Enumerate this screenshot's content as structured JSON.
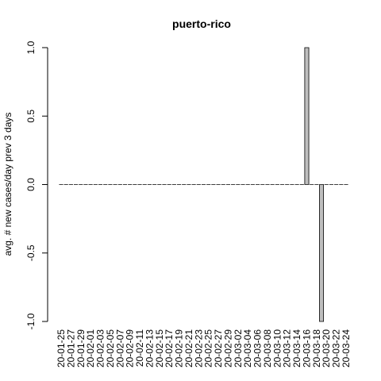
{
  "chart_data": {
    "type": "bar",
    "title": "puerto-rico",
    "y_label": "avg. # new cases/day prev  3  days",
    "categories": [
      "20-01-25",
      null,
      "20-01-27",
      null,
      "20-01-29",
      null,
      "20-02-01",
      null,
      "20-02-03",
      null,
      "20-02-05",
      null,
      "20-02-07",
      null,
      "20-02-09",
      null,
      "20-02-11",
      null,
      "20-02-13",
      null,
      "20-02-15",
      null,
      "20-02-17",
      null,
      "20-02-19",
      null,
      "20-02-21",
      null,
      "20-02-23",
      null,
      "20-02-25",
      null,
      "20-02-27",
      null,
      "20-02-29",
      null,
      "20-03-02",
      null,
      "20-03-04",
      null,
      "20-03-06",
      null,
      "20-03-08",
      null,
      "20-03-10",
      null,
      "20-03-12",
      null,
      "20-03-14",
      null,
      "20-03-16",
      null,
      "20-03-18",
      null,
      "20-03-20",
      null,
      "20-03-22",
      null,
      "20-03-24"
    ],
    "values": [
      0,
      0,
      0,
      0,
      0,
      0,
      0,
      0,
      0,
      0,
      0,
      0,
      0,
      0,
      0,
      0,
      0,
      0,
      0,
      0,
      0,
      0,
      0,
      0,
      0,
      0,
      0,
      0,
      0,
      0,
      0,
      0,
      0,
      0,
      0,
      0,
      0,
      0,
      0,
      0,
      0,
      0,
      0,
      0,
      0,
      0,
      0,
      0,
      0,
      0,
      1,
      0,
      0,
      -1,
      0,
      0,
      0,
      0,
      0
    ],
    "color": "#bebebe",
    "ylim": [
      -1,
      1
    ],
    "yticks": [
      {
        "value": -1,
        "label": "-1.0"
      },
      -0.5,
      {
        "value": 0,
        "label": "0.0"
      },
      0.5,
      {
        "value": 1,
        "label": "1.0"
      }
    ]
  }
}
